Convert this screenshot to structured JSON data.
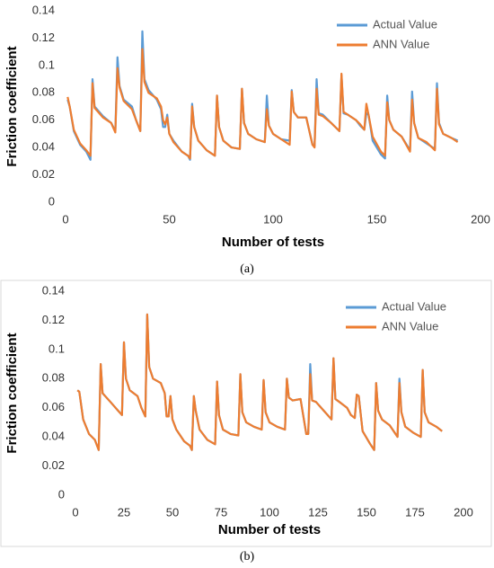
{
  "chart_data": [
    {
      "type": "line",
      "caption": "(a)",
      "x_label": "Number of tests",
      "y_label": "Friction coefficient",
      "x": [
        1,
        2,
        4,
        7,
        10,
        12,
        13,
        14,
        18,
        22,
        24,
        25,
        26,
        28,
        32,
        34,
        36,
        37,
        38,
        40,
        44,
        46,
        47,
        48,
        49,
        50,
        52,
        56,
        59,
        60,
        61,
        62,
        64,
        68,
        72,
        73,
        74,
        76,
        80,
        84,
        85,
        86,
        88,
        92,
        96,
        97,
        98,
        100,
        104,
        108,
        109,
        110,
        112,
        116,
        119,
        120,
        121,
        122,
        124,
        128,
        132,
        133,
        134,
        136,
        140,
        142,
        144,
        145,
        146,
        148,
        152,
        154,
        155,
        156,
        158,
        162,
        166,
        167,
        168,
        170,
        174,
        178,
        179,
        180,
        182,
        186,
        189
      ],
      "series": [
        {
          "name": "Actual Value",
          "color": "#5b9bd5",
          "values": [
            0.075,
            0.07,
            0.052,
            0.042,
            0.037,
            0.031,
            0.09,
            0.07,
            0.063,
            0.058,
            0.052,
            0.106,
            0.085,
            0.075,
            0.07,
            0.06,
            0.052,
            0.125,
            0.09,
            0.082,
            0.075,
            0.068,
            0.055,
            0.055,
            0.064,
            0.05,
            0.045,
            0.037,
            0.034,
            0.031,
            0.072,
            0.055,
            0.045,
            0.038,
            0.034,
            0.078,
            0.055,
            0.045,
            0.04,
            0.039,
            0.083,
            0.058,
            0.05,
            0.046,
            0.044,
            0.078,
            0.056,
            0.05,
            0.046,
            0.045,
            0.082,
            0.066,
            0.062,
            0.062,
            0.042,
            0.041,
            0.09,
            0.065,
            0.064,
            0.058,
            0.052,
            0.093,
            0.065,
            0.064,
            0.06,
            0.056,
            0.053,
            0.065,
            0.064,
            0.045,
            0.035,
            0.032,
            0.078,
            0.06,
            0.053,
            0.048,
            0.038,
            0.081,
            0.058,
            0.047,
            0.043,
            0.039,
            0.087,
            0.058,
            0.05,
            0.047,
            0.045
          ]
        },
        {
          "name": "ANN Value",
          "color": "#ed7d31",
          "values": [
            0.077,
            0.07,
            0.053,
            0.043,
            0.038,
            0.034,
            0.087,
            0.069,
            0.062,
            0.058,
            0.051,
            0.098,
            0.084,
            0.074,
            0.068,
            0.06,
            0.052,
            0.112,
            0.088,
            0.08,
            0.076,
            0.07,
            0.06,
            0.057,
            0.062,
            0.05,
            0.044,
            0.037,
            0.034,
            0.032,
            0.07,
            0.055,
            0.045,
            0.038,
            0.034,
            0.078,
            0.055,
            0.045,
            0.04,
            0.039,
            0.083,
            0.058,
            0.05,
            0.046,
            0.044,
            0.068,
            0.056,
            0.05,
            0.046,
            0.042,
            0.081,
            0.066,
            0.062,
            0.062,
            0.042,
            0.04,
            0.083,
            0.064,
            0.063,
            0.058,
            0.052,
            0.094,
            0.066,
            0.064,
            0.06,
            0.057,
            0.053,
            0.072,
            0.064,
            0.048,
            0.037,
            0.034,
            0.073,
            0.06,
            0.053,
            0.048,
            0.037,
            0.075,
            0.058,
            0.047,
            0.044,
            0.038,
            0.083,
            0.057,
            0.05,
            0.047,
            0.044
          ]
        }
      ],
      "xlim": [
        0,
        200
      ],
      "xticks": [
        0,
        50,
        100,
        150,
        200
      ],
      "ylim": [
        0,
        0.14
      ],
      "yticks": [
        0,
        0.02,
        0.04,
        0.06,
        0.08,
        0.1,
        0.12,
        0.14
      ]
    },
    {
      "type": "line",
      "caption": "(b)",
      "x_label": "Number of tests",
      "y_label": "Friction coefficient",
      "x": [
        1,
        2,
        4,
        7,
        10,
        12,
        13,
        14,
        18,
        22,
        24,
        25,
        26,
        28,
        32,
        34,
        36,
        37,
        38,
        40,
        44,
        46,
        47,
        48,
        49,
        50,
        52,
        56,
        59,
        60,
        61,
        62,
        64,
        68,
        72,
        73,
        74,
        76,
        80,
        84,
        85,
        86,
        88,
        92,
        96,
        97,
        98,
        100,
        104,
        108,
        109,
        110,
        112,
        116,
        119,
        120,
        121,
        122,
        124,
        128,
        132,
        133,
        134,
        136,
        140,
        142,
        144,
        145,
        146,
        148,
        152,
        154,
        155,
        156,
        158,
        162,
        166,
        167,
        168,
        170,
        174,
        178,
        179,
        180,
        182,
        186,
        189
      ],
      "series": [
        {
          "name": "Actual Value",
          "color": "#5b9bd5",
          "values": [
            0.072,
            0.071,
            0.052,
            0.042,
            0.038,
            0.031,
            0.09,
            0.07,
            0.064,
            0.058,
            0.055,
            0.105,
            0.08,
            0.072,
            0.068,
            0.06,
            0.054,
            0.124,
            0.088,
            0.08,
            0.077,
            0.07,
            0.054,
            0.054,
            0.068,
            0.052,
            0.045,
            0.037,
            0.034,
            0.031,
            0.068,
            0.058,
            0.045,
            0.038,
            0.035,
            0.078,
            0.055,
            0.045,
            0.042,
            0.041,
            0.083,
            0.057,
            0.05,
            0.047,
            0.045,
            0.079,
            0.057,
            0.05,
            0.047,
            0.045,
            0.08,
            0.067,
            0.065,
            0.066,
            0.042,
            0.042,
            0.09,
            0.065,
            0.064,
            0.058,
            0.052,
            0.094,
            0.066,
            0.064,
            0.06,
            0.055,
            0.053,
            0.069,
            0.068,
            0.044,
            0.035,
            0.031,
            0.077,
            0.058,
            0.052,
            0.048,
            0.04,
            0.08,
            0.057,
            0.047,
            0.043,
            0.04,
            0.086,
            0.057,
            0.05,
            0.047,
            0.044
          ]
        },
        {
          "name": "ANN Value",
          "color": "#ed7d31",
          "values": [
            0.072,
            0.071,
            0.052,
            0.042,
            0.038,
            0.031,
            0.09,
            0.07,
            0.064,
            0.058,
            0.055,
            0.105,
            0.08,
            0.072,
            0.068,
            0.06,
            0.054,
            0.124,
            0.088,
            0.08,
            0.077,
            0.07,
            0.054,
            0.054,
            0.068,
            0.052,
            0.045,
            0.037,
            0.034,
            0.031,
            0.068,
            0.058,
            0.045,
            0.038,
            0.035,
            0.078,
            0.055,
            0.045,
            0.042,
            0.041,
            0.083,
            0.057,
            0.05,
            0.047,
            0.045,
            0.079,
            0.057,
            0.05,
            0.047,
            0.045,
            0.08,
            0.067,
            0.065,
            0.066,
            0.042,
            0.042,
            0.083,
            0.065,
            0.064,
            0.058,
            0.052,
            0.094,
            0.066,
            0.064,
            0.06,
            0.055,
            0.053,
            0.069,
            0.068,
            0.044,
            0.035,
            0.031,
            0.077,
            0.058,
            0.052,
            0.048,
            0.04,
            0.077,
            0.057,
            0.047,
            0.043,
            0.04,
            0.086,
            0.057,
            0.05,
            0.047,
            0.044
          ]
        }
      ],
      "xlim": [
        0,
        200
      ],
      "xticks": [
        0,
        25,
        50,
        75,
        100,
        125,
        150,
        175,
        200
      ],
      "ylim": [
        0,
        0.14
      ],
      "yticks": [
        0,
        0.02,
        0.04,
        0.06,
        0.08,
        0.1,
        0.12,
        0.14
      ]
    }
  ]
}
